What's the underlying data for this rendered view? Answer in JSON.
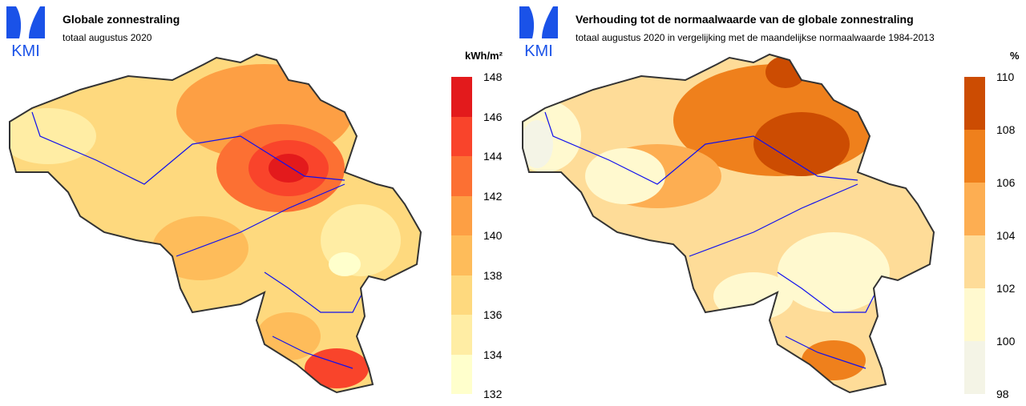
{
  "logo": {
    "text": "KMI",
    "color": "#1a52e8"
  },
  "left": {
    "title": "Globale zonnestraling",
    "subtitle": "totaal augustus 2020",
    "unit": "kWh/m²",
    "legend": {
      "ticks": [
        "148",
        "146",
        "144",
        "142",
        "140",
        "138",
        "136",
        "134",
        "132"
      ],
      "colors": [
        "#e31a1c",
        "#f9442b",
        "#fc7033",
        "#fd9f44",
        "#febc5a",
        "#fed97e",
        "#ffeda4",
        "#ffffcc"
      ]
    }
  },
  "right": {
    "title": "Verhouding tot de normaalwaarde van de globale zonnestraling",
    "subtitle": "totaal augustus 2020 in vergelijking met de maandelijkse normaalwaarde 1984-2013",
    "unit": "%",
    "legend": {
      "ticks": [
        "110",
        "108",
        "106",
        "104",
        "102",
        "100",
        "98"
      ],
      "colors": [
        "#cc4c02",
        "#ef801c",
        "#fdae52",
        "#fedc98",
        "#fff9cf",
        "#f4f4e6"
      ]
    }
  }
}
